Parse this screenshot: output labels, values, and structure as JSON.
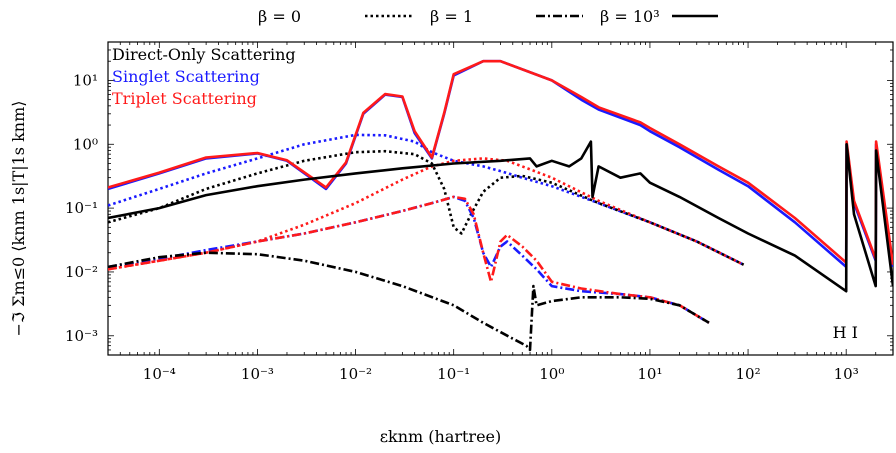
{
  "chart_data": {
    "type": "line",
    "xlabel": "εknm (hartree)",
    "ylabel": "−ℑ Σm≤0 ⟨knm 1s|T|1s knm⟩",
    "xscale": "log",
    "yscale": "log",
    "xlim": [
      3e-05,
      3000
    ],
    "ylim": [
      0.0005,
      40
    ],
    "x_ticks": [
      {
        "value": 0.0001,
        "label": "10⁻⁴"
      },
      {
        "value": 0.001,
        "label": "10⁻³"
      },
      {
        "value": 0.01,
        "label": "10⁻²"
      },
      {
        "value": 0.1,
        "label": "10⁻¹"
      },
      {
        "value": 1,
        "label": "10⁰"
      },
      {
        "value": 10,
        "label": "10¹"
      },
      {
        "value": 100,
        "label": "10²"
      },
      {
        "value": 1000,
        "label": "10³"
      }
    ],
    "y_ticks": [
      {
        "value": 0.001,
        "label": "10⁻³"
      },
      {
        "value": 0.01,
        "label": "10⁻²"
      },
      {
        "value": 0.1,
        "label": "10⁻¹"
      },
      {
        "value": 1,
        "label": "10⁰"
      },
      {
        "value": 10,
        "label": "10¹"
      }
    ],
    "top_legend": {
      "placement": "top-center",
      "entries": [
        {
          "label": "β = 0",
          "style": "dotted"
        },
        {
          "label": "β = 1",
          "style": "dashdot"
        },
        {
          "label": "β = 10³",
          "style": "solid"
        }
      ]
    },
    "color_legend": {
      "placement": "top-left",
      "entries": [
        {
          "label": "Direct-Only Scattering",
          "color": "#000000"
        },
        {
          "label": "Singlet Scattering",
          "color": "#1a1aff"
        },
        {
          "label": "Triplet Scattering",
          "color": "#ff1a1a"
        }
      ]
    },
    "annotation": "H I",
    "series": [
      {
        "color": "#1a1aff",
        "style": "dotted",
        "x": [
          3e-05,
          0.0001,
          0.0003,
          0.001,
          0.003,
          0.01,
          0.02,
          0.04,
          0.06,
          0.1,
          0.2,
          0.3,
          0.5,
          1,
          3,
          10,
          30,
          90
        ],
        "y": [
          0.11,
          0.2,
          0.35,
          0.6,
          1.0,
          1.4,
          1.38,
          1.1,
          0.75,
          0.55,
          0.45,
          0.38,
          0.3,
          0.22,
          0.12,
          0.06,
          0.03,
          0.013
        ]
      },
      {
        "color": "#ff1a1a",
        "style": "dotted",
        "x": [
          3e-05,
          0.0001,
          0.0003,
          0.001,
          0.003,
          0.01,
          0.03,
          0.06,
          0.1,
          0.2,
          0.35,
          0.5,
          1,
          3,
          10,
          30,
          90
        ],
        "y": [
          0.011,
          0.015,
          0.02,
          0.03,
          0.055,
          0.12,
          0.28,
          0.45,
          0.55,
          0.6,
          0.55,
          0.45,
          0.3,
          0.13,
          0.06,
          0.03,
          0.013
        ]
      },
      {
        "color": "#000000",
        "style": "dotted",
        "x": [
          3e-05,
          0.0001,
          0.0003,
          0.001,
          0.003,
          0.01,
          0.02,
          0.04,
          0.06,
          0.08,
          0.1,
          0.12,
          0.15,
          0.2,
          0.3,
          0.5,
          1,
          3,
          10,
          30,
          90
        ],
        "y": [
          0.06,
          0.1,
          0.2,
          0.35,
          0.55,
          0.75,
          0.78,
          0.7,
          0.5,
          0.2,
          0.05,
          0.04,
          0.08,
          0.18,
          0.3,
          0.32,
          0.25,
          0.12,
          0.06,
          0.03,
          0.013
        ]
      },
      {
        "color": "#1a1aff",
        "style": "dashdot",
        "x": [
          3e-05,
          0.0001,
          0.0003,
          0.001,
          0.003,
          0.01,
          0.03,
          0.06,
          0.1,
          0.13,
          0.16,
          0.2,
          0.24,
          0.3,
          0.35,
          0.5,
          0.7,
          1,
          2,
          5,
          10,
          20,
          40
        ],
        "y": [
          0.012,
          0.016,
          0.022,
          0.03,
          0.04,
          0.06,
          0.09,
          0.12,
          0.15,
          0.13,
          0.07,
          0.02,
          0.012,
          0.025,
          0.03,
          0.018,
          0.011,
          0.006,
          0.005,
          0.0045,
          0.004,
          0.003,
          0.0016
        ]
      },
      {
        "color": "#ff1a1a",
        "style": "dashdot",
        "x": [
          3e-05,
          0.0001,
          0.0003,
          0.001,
          0.003,
          0.01,
          0.03,
          0.06,
          0.1,
          0.13,
          0.16,
          0.2,
          0.24,
          0.3,
          0.35,
          0.5,
          0.7,
          1,
          2,
          5,
          10,
          20,
          40
        ],
        "y": [
          0.011,
          0.015,
          0.02,
          0.03,
          0.04,
          0.06,
          0.09,
          0.12,
          0.15,
          0.14,
          0.08,
          0.02,
          0.007,
          0.03,
          0.038,
          0.025,
          0.015,
          0.007,
          0.0055,
          0.0045,
          0.004,
          0.003,
          0.0016
        ]
      },
      {
        "color": "#000000",
        "style": "dashdot",
        "x": [
          3e-05,
          0.0001,
          0.0003,
          0.001,
          0.003,
          0.01,
          0.03,
          0.1,
          0.2,
          0.4,
          0.55,
          0.6,
          0.65,
          0.7,
          1,
          2,
          5,
          10,
          20,
          40
        ],
        "y": [
          0.012,
          0.017,
          0.02,
          0.019,
          0.015,
          0.01,
          0.006,
          0.003,
          0.0016,
          0.0009,
          0.0007,
          0.0006,
          0.006,
          0.003,
          0.0035,
          0.004,
          0.004,
          0.0038,
          0.003,
          0.0016
        ]
      },
      {
        "color": "#1a1aff",
        "style": "solid",
        "x": [
          3e-05,
          0.0001,
          0.0003,
          0.001,
          0.002,
          0.005,
          0.008,
          0.012,
          0.02,
          0.03,
          0.04,
          0.06,
          0.08,
          0.1,
          0.2,
          0.3,
          1,
          2,
          3,
          8,
          10,
          20,
          50,
          100,
          300,
          1000,
          1010,
          1200,
          2000,
          2020,
          3000
        ],
        "y": [
          0.2,
          0.35,
          0.6,
          0.72,
          0.55,
          0.2,
          0.5,
          3.0,
          6.0,
          5.5,
          1.5,
          0.6,
          3.0,
          12.0,
          20.0,
          20.0,
          10.0,
          5.0,
          3.5,
          2.0,
          1.6,
          0.9,
          0.4,
          0.22,
          0.06,
          0.012,
          1.0,
          0.12,
          0.015,
          1.0,
          0.012
        ]
      },
      {
        "color": "#ff1a1a",
        "style": "solid",
        "x": [
          3e-05,
          0.0001,
          0.0003,
          0.001,
          0.002,
          0.005,
          0.008,
          0.012,
          0.02,
          0.03,
          0.04,
          0.06,
          0.08,
          0.1,
          0.2,
          0.3,
          1,
          2,
          3,
          8,
          10,
          20,
          50,
          100,
          300,
          1000,
          1010,
          1200,
          2000,
          2020,
          3000
        ],
        "y": [
          0.21,
          0.36,
          0.62,
          0.73,
          0.56,
          0.21,
          0.52,
          3.1,
          6.1,
          5.6,
          1.6,
          0.62,
          3.1,
          12.5,
          20.0,
          20.0,
          10.0,
          5.5,
          3.8,
          2.2,
          1.8,
          1.0,
          0.45,
          0.25,
          0.07,
          0.014,
          1.1,
          0.13,
          0.016,
          1.1,
          0.013
        ]
      },
      {
        "color": "#000000",
        "style": "solid",
        "x": [
          3e-05,
          0.0001,
          0.0003,
          0.001,
          0.003,
          0.01,
          0.03,
          0.1,
          0.3,
          0.6,
          0.7,
          1.0,
          1.5,
          2.0,
          2.5,
          2.6,
          3.0,
          5.0,
          8.0,
          10,
          20,
          50,
          100,
          300,
          1000,
          1010,
          1200,
          2000,
          2020,
          3000
        ],
        "y": [
          0.07,
          0.1,
          0.16,
          0.22,
          0.28,
          0.35,
          0.42,
          0.5,
          0.55,
          0.6,
          0.45,
          0.55,
          0.45,
          0.6,
          1.1,
          0.15,
          0.45,
          0.3,
          0.35,
          0.25,
          0.15,
          0.07,
          0.04,
          0.018,
          0.005,
          1.0,
          0.08,
          0.006,
          0.8,
          0.006
        ]
      }
    ]
  }
}
